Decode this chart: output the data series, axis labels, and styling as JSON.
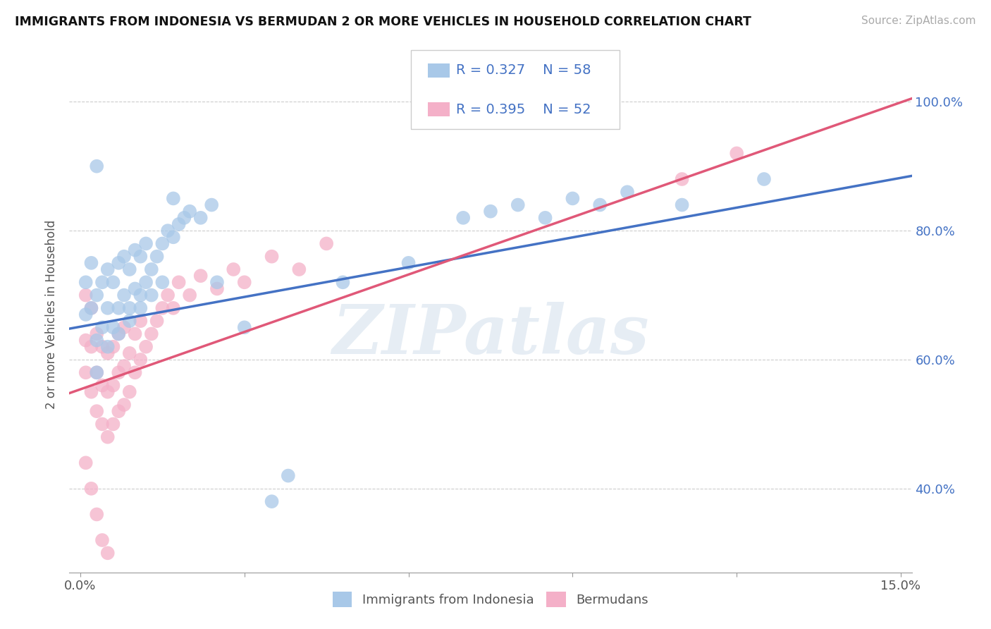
{
  "title": "IMMIGRANTS FROM INDONESIA VS BERMUDAN 2 OR MORE VEHICLES IN HOUSEHOLD CORRELATION CHART",
  "source": "Source: ZipAtlas.com",
  "ylabel": "2 or more Vehicles in Household",
  "xlim": [
    -0.002,
    0.152
  ],
  "ylim": [
    0.27,
    1.07
  ],
  "xtick_positions": [
    0.0,
    0.15
  ],
  "xtick_labels": [
    "0.0%",
    "15.0%"
  ],
  "ytick_positions": [
    0.4,
    0.6,
    0.8,
    1.0
  ],
  "ytick_labels": [
    "40.0%",
    "60.0%",
    "80.0%",
    "100.0%"
  ],
  "legend_entries": [
    {
      "color": "#a8c8e8",
      "R": "0.327",
      "N": "58"
    },
    {
      "color": "#f4b0c8",
      "R": "0.395",
      "N": "52"
    }
  ],
  "legend_labels": [
    "Immigrants from Indonesia",
    "Bermudans"
  ],
  "blue_color": "#a8c8e8",
  "pink_color": "#f4b0c8",
  "blue_line_color": "#4472c4",
  "pink_line_color": "#e05878",
  "watermark": "ZIPatlas",
  "blue_line": {
    "x0": -0.002,
    "y0": 0.648,
    "x1": 0.152,
    "y1": 0.885
  },
  "pink_line": {
    "x0": -0.002,
    "y0": 0.548,
    "x1": 0.152,
    "y1": 1.005
  },
  "blue_scatter": {
    "x": [
      0.001,
      0.001,
      0.002,
      0.002,
      0.003,
      0.003,
      0.004,
      0.004,
      0.005,
      0.005,
      0.006,
      0.006,
      0.007,
      0.007,
      0.008,
      0.008,
      0.009,
      0.009,
      0.01,
      0.01,
      0.011,
      0.011,
      0.012,
      0.012,
      0.013,
      0.014,
      0.015,
      0.016,
      0.017,
      0.018,
      0.019,
      0.02,
      0.022,
      0.024,
      0.003,
      0.005,
      0.007,
      0.009,
      0.011,
      0.013,
      0.015,
      0.003,
      0.017,
      0.025,
      0.03,
      0.035,
      0.038,
      0.048,
      0.06,
      0.07,
      0.075,
      0.08,
      0.085,
      0.09,
      0.095,
      0.1,
      0.11,
      0.125
    ],
    "y": [
      0.67,
      0.72,
      0.68,
      0.75,
      0.63,
      0.7,
      0.65,
      0.72,
      0.68,
      0.74,
      0.65,
      0.72,
      0.68,
      0.75,
      0.7,
      0.76,
      0.68,
      0.74,
      0.71,
      0.77,
      0.7,
      0.76,
      0.72,
      0.78,
      0.74,
      0.76,
      0.78,
      0.8,
      0.79,
      0.81,
      0.82,
      0.83,
      0.82,
      0.84,
      0.58,
      0.62,
      0.64,
      0.66,
      0.68,
      0.7,
      0.72,
      0.9,
      0.85,
      0.72,
      0.65,
      0.38,
      0.42,
      0.72,
      0.75,
      0.82,
      0.83,
      0.84,
      0.82,
      0.85,
      0.84,
      0.86,
      0.84,
      0.88
    ]
  },
  "pink_scatter": {
    "x": [
      0.001,
      0.001,
      0.001,
      0.002,
      0.002,
      0.002,
      0.003,
      0.003,
      0.003,
      0.004,
      0.004,
      0.004,
      0.005,
      0.005,
      0.005,
      0.006,
      0.006,
      0.006,
      0.007,
      0.007,
      0.007,
      0.008,
      0.008,
      0.008,
      0.009,
      0.009,
      0.01,
      0.01,
      0.011,
      0.011,
      0.012,
      0.013,
      0.014,
      0.015,
      0.016,
      0.017,
      0.018,
      0.02,
      0.022,
      0.025,
      0.028,
      0.03,
      0.035,
      0.04,
      0.045,
      0.001,
      0.002,
      0.003,
      0.004,
      0.005,
      0.11,
      0.12
    ],
    "y": [
      0.58,
      0.63,
      0.7,
      0.55,
      0.62,
      0.68,
      0.52,
      0.58,
      0.64,
      0.5,
      0.56,
      0.62,
      0.48,
      0.55,
      0.61,
      0.5,
      0.56,
      0.62,
      0.52,
      0.58,
      0.64,
      0.53,
      0.59,
      0.65,
      0.55,
      0.61,
      0.58,
      0.64,
      0.6,
      0.66,
      0.62,
      0.64,
      0.66,
      0.68,
      0.7,
      0.68,
      0.72,
      0.7,
      0.73,
      0.71,
      0.74,
      0.72,
      0.76,
      0.74,
      0.78,
      0.44,
      0.4,
      0.36,
      0.32,
      0.3,
      0.88,
      0.92
    ]
  }
}
